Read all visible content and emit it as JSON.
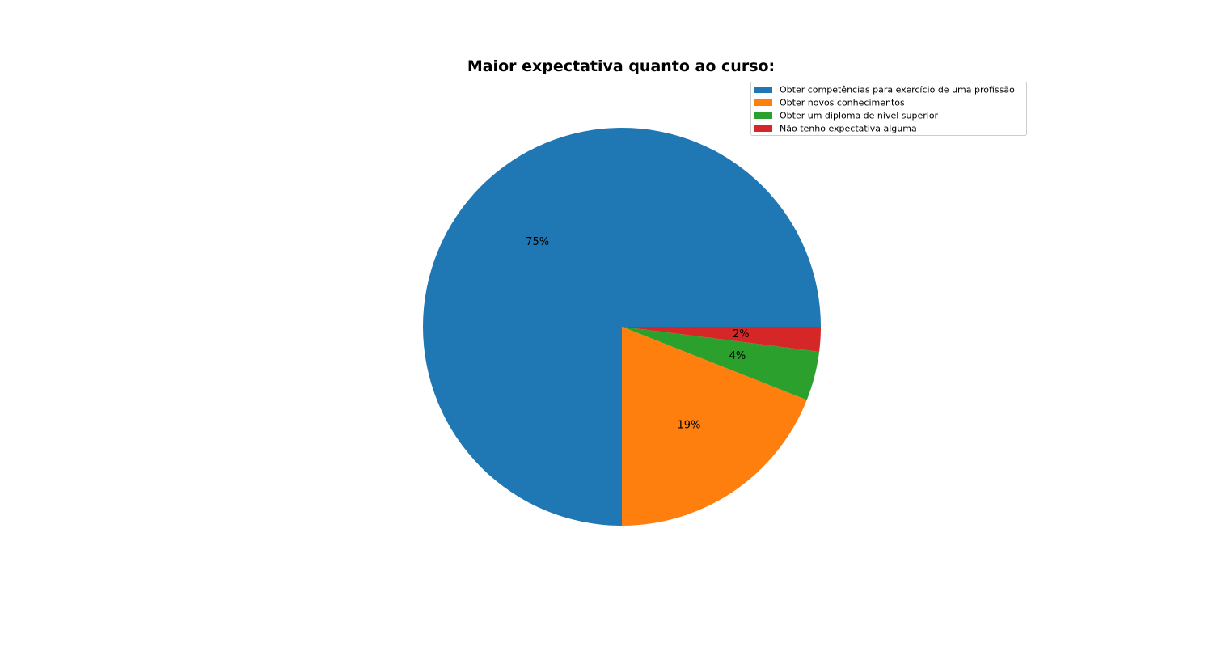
{
  "chart_data": {
    "type": "pie",
    "title": "Maior expectativa quanto ao curso:",
    "categories": [
      " Obter competências para exercício de uma profissão",
      "Obter novos conhecimentos",
      "Obter um diploma de nível superior",
      "Não tenho expectativa alguma"
    ],
    "values": [
      75,
      19,
      4,
      2
    ],
    "labels": [
      "75%",
      "19%",
      "4%",
      "2%"
    ],
    "colors": [
      "#1f77b4",
      "#ff7f0e",
      "#2ca02c",
      "#d62728"
    ],
    "direction": "counterclockwise",
    "start_angle_deg": 0,
    "legend_position": "upper-right"
  }
}
